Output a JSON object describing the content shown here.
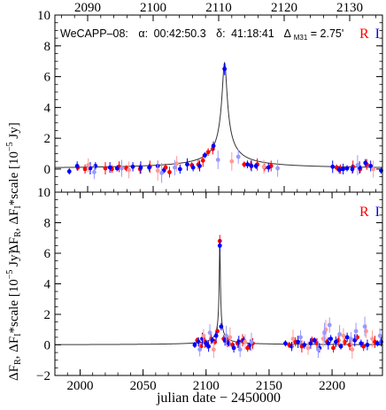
{
  "chart_data": [
    {
      "type": "scatter",
      "panel": "top",
      "object": "WeCAPP–08:",
      "coords": {
        "alpha_label": "α:",
        "alpha_value": "00:42:50.3",
        "delta_label": "δ:",
        "delta_value": "41:18:41",
        "dist_symbol": "Δ",
        "dist_sub": "M31",
        "dist_value": "= 2.75'"
      },
      "legend": [
        {
          "label": "R",
          "color": "#ff0000"
        },
        {
          "label": "I",
          "color": "#0000ff"
        }
      ],
      "xlim": [
        2085,
        2135
      ],
      "ylim": [
        -1.5,
        10
      ],
      "x_ticks": [
        2090,
        2100,
        2110,
        2120,
        2130
      ],
      "x_tick_labels": [
        "2090",
        "2100",
        "2110",
        "2120",
        "2130"
      ],
      "x_ticks_position": "top",
      "y_ticks": [
        0,
        2,
        4,
        6,
        8,
        10
      ],
      "y_tick_labels": [
        "0",
        "2",
        "4",
        "6",
        "8",
        "10"
      ],
      "model": {
        "t0": 2110.9,
        "tE": 0.28,
        "peak": 6.9
      },
      "series": [
        {
          "name": "R",
          "color": "#ff0000",
          "x": [
            2088.5,
            2089.6,
            2092.7,
            2093.7,
            2094.8,
            2095.9,
            2098.0,
            2099.5,
            2101.9,
            2102.5,
            2105.9,
            2106.9,
            2107.6,
            2108.4,
            2109.1,
            2113.9,
            2114.9,
            2115.9,
            2117.0,
            2118.0,
            2128.0,
            2128.6,
            2130.5,
            2131.6,
            2132.6
          ],
          "y": [
            0.1,
            0.0,
            0.05,
            0.0,
            0.15,
            0.05,
            0.0,
            0.15,
            0.1,
            -0.2,
            0.25,
            0.3,
            0.55,
            1.1,
            1.3,
            0.3,
            0.25,
            0.3,
            0.1,
            0.2,
            0.1,
            0.0,
            0.15,
            0.0,
            0.3
          ]
        },
        {
          "name": "I",
          "color": "#0000ff",
          "x": [
            2087.2,
            2088.4,
            2090.4,
            2091.2,
            2093.4,
            2094.5,
            2096.9,
            2098.1,
            2099.4,
            2100.7,
            2101.6,
            2104.1,
            2105.2,
            2106.1,
            2107.1,
            2107.9,
            2109.2,
            2110.9,
            2114.4,
            2115.0,
            2115.7,
            2117.6,
            2127.4,
            2128.4,
            2129.0,
            2129.6,
            2130.4,
            2131.5,
            2132.4,
            2133.2,
            2134.8
          ],
          "y": [
            -0.15,
            0.2,
            0.05,
            0.2,
            0.1,
            0.05,
            0.15,
            0.1,
            0.1,
            0.2,
            -0.1,
            0.0,
            0.3,
            0.1,
            0.2,
            0.9,
            1.5,
            6.5,
            0.3,
            0.2,
            0.2,
            0.1,
            0.15,
            -0.05,
            0.0,
            0.05,
            0.0,
            0.1,
            0.4,
            0.2,
            -0.1
          ]
        },
        {
          "name": "R (low weight)",
          "color": "#ff9999",
          "x": [
            2090.1,
            2096.3,
            2100.7,
            2103.6,
            2112.0,
            2116.9,
            2133.6
          ],
          "y": [
            0.25,
            -0.05,
            -0.1,
            0.35,
            0.5,
            0.15,
            0.0
          ]
        },
        {
          "name": "I (low weight)",
          "color": "#9999ff",
          "x": [
            2091.0,
            2095.2,
            2101.3,
            2103.3,
            2109.9,
            2113.0,
            2119.0,
            2131.2
          ],
          "y": [
            -0.2,
            0.05,
            -0.25,
            0.1,
            0.6,
            0.8,
            0.05,
            0.25
          ]
        }
      ]
    },
    {
      "type": "scatter",
      "panel": "bottom",
      "legend": [
        {
          "label": "R",
          "color": "#ff0000"
        },
        {
          "label": "I",
          "color": "#0000ff"
        }
      ],
      "xlim": [
        1980,
        2240
      ],
      "ylim": [
        -2,
        10
      ],
      "x_ticks": [
        2000,
        2050,
        2100,
        2150,
        2200
      ],
      "x_tick_labels": [
        "2000",
        "2050",
        "2100",
        "2150",
        "2200"
      ],
      "xlabel": "julian date − 2450000",
      "y_ticks": [
        -2,
        0,
        2,
        4,
        6,
        8,
        10
      ],
      "y_tick_labels": [
        "−2",
        "0",
        "2",
        "4",
        "6",
        "8",
        "10"
      ],
      "model": {
        "t0": 2110.9,
        "tE": 0.28,
        "peak": 6.9
      },
      "series": [
        {
          "name": "R",
          "color": "#ff0000",
          "x": [
            2093,
            2096,
            2099,
            2101,
            2104,
            2107,
            2109,
            2110.9,
            2114,
            2117,
            2121,
            2125,
            2129,
            2133,
            2137,
            2166,
            2171,
            2176,
            2184,
            2188,
            2196,
            2201,
            2205,
            2210,
            2214,
            2220,
            2225,
            2234
          ],
          "y": [
            0.3,
            -0.1,
            0.2,
            0.0,
            0.4,
            0.2,
            0.9,
            6.8,
            0.4,
            0.2,
            0.0,
            0.1,
            0.3,
            -0.2,
            0.1,
            0.0,
            0.2,
            -0.1,
            0.3,
            0.1,
            0.2,
            -0.2,
            0.3,
            0.2,
            0.0,
            0.5,
            -0.1,
            0.2
          ]
        },
        {
          "name": "I",
          "color": "#0000ff",
          "x": [
            2091,
            2094,
            2097,
            2100,
            2102,
            2105,
            2108,
            2110.9,
            2112,
            2115,
            2118,
            2122,
            2126,
            2130,
            2135,
            2163,
            2168,
            2173,
            2178,
            2183,
            2186,
            2190,
            2197,
            2199,
            2203,
            2207,
            2212,
            2218,
            2223,
            2228,
            2236,
            2239
          ],
          "y": [
            0.0,
            0.2,
            0.4,
            0.1,
            -0.1,
            0.3,
            0.6,
            6.5,
            1.2,
            0.3,
            0.1,
            -0.2,
            0.2,
            0.3,
            0.0,
            0.1,
            -0.1,
            0.2,
            0.0,
            0.1,
            0.3,
            -0.2,
            0.1,
            0.4,
            0.2,
            -0.1,
            0.5,
            0.3,
            0.1,
            0.0,
            0.1,
            0.2
          ]
        },
        {
          "name": "R (low weight)",
          "color": "#ff9999",
          "x": [
            2098,
            2106,
            2119,
            2131,
            2169,
            2181,
            2193,
            2195,
            2209,
            2216,
            2227,
            2232
          ],
          "y": [
            0.6,
            -0.3,
            0.5,
            0.2,
            0.4,
            -0.2,
            0.4,
            1.0,
            0.6,
            -0.3,
            0.9,
            0.4
          ]
        },
        {
          "name": "I (low weight)",
          "color": "#9999ff",
          "x": [
            2095,
            2103,
            2116,
            2127,
            2136,
            2175,
            2189,
            2194,
            2198,
            2206,
            2215,
            2219,
            2226,
            2238
          ],
          "y": [
            -0.3,
            0.8,
            0.6,
            -0.3,
            0.2,
            0.5,
            -0.3,
            0.8,
            1.3,
            0.7,
            0.4,
            0.9,
            1.2,
            0.6
          ]
        }
      ]
    }
  ],
  "shared_ylabel": {
    "main": "ΔF",
    "sub_r": "R",
    "sep": ", ΔF",
    "sub_i": "I",
    "rest": "*scale [10",
    "exp": "−5",
    "unit": " Jy]"
  },
  "bottom_ylabel": {
    "main": "ΔF",
    "sub_r": "R",
    "sep": ", ΔF",
    "sub_i": "I",
    "rest": "*scale [10",
    "exp": "−5",
    "unit": " Jy]"
  }
}
